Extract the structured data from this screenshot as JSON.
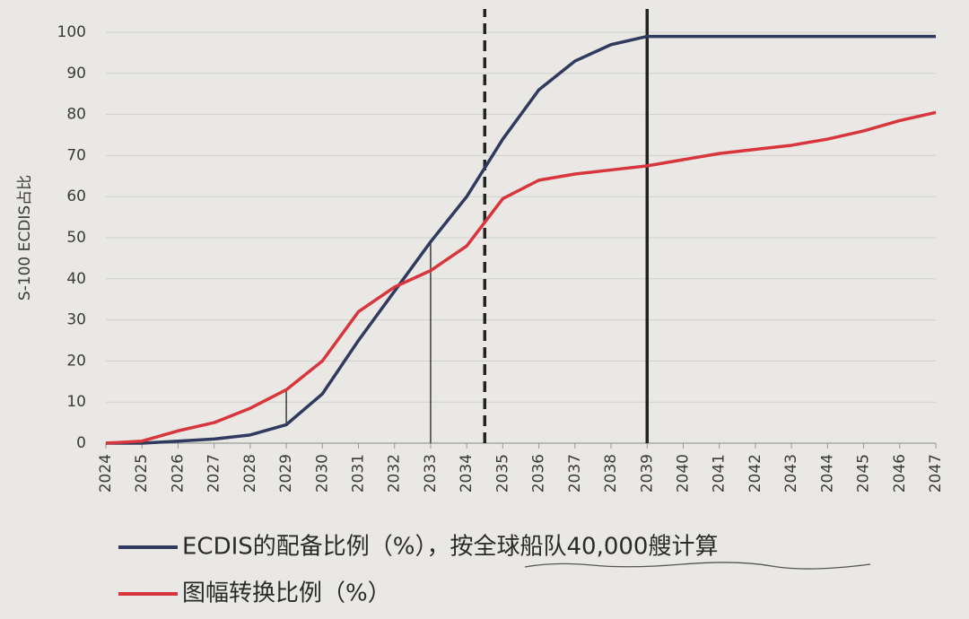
{
  "chart_data": {
    "type": "line",
    "y_label": "S-100 ECDIS占比",
    "x": [
      2024,
      2025,
      2026,
      2027,
      2028,
      2029,
      2030,
      2031,
      2032,
      2033,
      2034,
      2035,
      2036,
      2037,
      2038,
      2039,
      2040,
      2041,
      2042,
      2043,
      2044,
      2045,
      2046,
      2047
    ],
    "series": [
      {
        "name": "ECDIS的配备比例（%），按全球船队40,000艘计算",
        "color": "#2f3a5e",
        "values": [
          0,
          0,
          0.5,
          1,
          2,
          4.5,
          12,
          25,
          37,
          49,
          60,
          74,
          86,
          93,
          97,
          99,
          99,
          99,
          99,
          99,
          99,
          99,
          99,
          99
        ]
      },
      {
        "name": "图幅转换比例（%）",
        "color": "#d8353d",
        "values": [
          0,
          0.5,
          3,
          5,
          8.5,
          13,
          20,
          32,
          38,
          42,
          48,
          59.5,
          64,
          65.5,
          66.5,
          67.5,
          69,
          70.5,
          71.5,
          72.5,
          74,
          76,
          78.5,
          80.5
        ]
      }
    ],
    "xlim": [
      2024,
      2047
    ],
    "xticks": [
      2024,
      2025,
      2026,
      2027,
      2028,
      2029,
      2030,
      2031,
      2032,
      2033,
      2034,
      2035,
      2036,
      2037,
      2038,
      2039,
      2040,
      2041,
      2042,
      2043,
      2044,
      2045,
      2046,
      2047
    ],
    "ylim": [
      0,
      100
    ],
    "yticks": [
      0,
      10,
      20,
      30,
      40,
      50,
      60,
      70,
      80,
      90,
      100
    ],
    "grid": true,
    "legend": "bottom",
    "vlines": [
      {
        "x": 2034.5,
        "style": "dashed",
        "y": [
          0,
          100
        ]
      },
      {
        "x": 2039,
        "style": "solid",
        "y": [
          0,
          100
        ]
      },
      {
        "x": 2033,
        "style": "thin",
        "y": [
          0,
          49
        ]
      },
      {
        "x": 2029,
        "style": "thin",
        "y": [
          4.5,
          13
        ]
      }
    ]
  }
}
